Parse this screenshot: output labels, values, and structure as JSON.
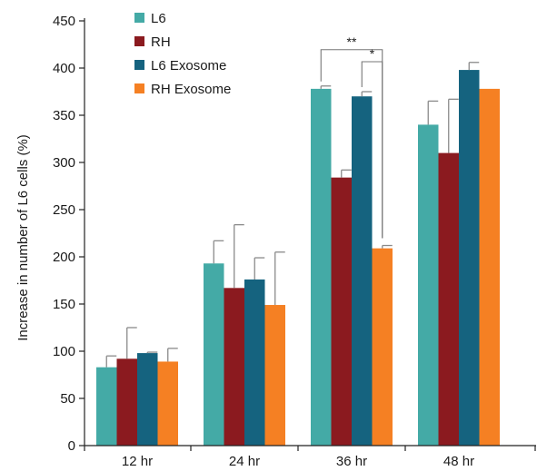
{
  "chart_data": {
    "type": "bar",
    "title": "",
    "xlabel": "",
    "ylabel": "Increase in number of L6 cells (%)",
    "ylim": [
      0,
      450
    ],
    "yticks": [
      0,
      50,
      100,
      150,
      200,
      250,
      300,
      350,
      400,
      450
    ],
    "categories": [
      "12 hr",
      "24 hr",
      "36 hr",
      "48 hr"
    ],
    "grid": false,
    "legend": "top-left",
    "series": [
      {
        "name": "L6",
        "color": "#44aaa6",
        "values": [
          83,
          193,
          378,
          340
        ],
        "errors": [
          12,
          24,
          3,
          25
        ]
      },
      {
        "name": "RH",
        "color": "#8b1a1f",
        "values": [
          92,
          167,
          284,
          310
        ],
        "errors": [
          33,
          67,
          8,
          57
        ]
      },
      {
        "name": "L6 Exosome",
        "color": "#15637f",
        "values": [
          98,
          176,
          370,
          398
        ],
        "errors": [
          1,
          23,
          5,
          8
        ]
      },
      {
        "name": "RH Exosome",
        "color": "#f58023",
        "values": [
          89,
          149,
          209,
          378
        ],
        "errors": [
          14,
          56,
          3,
          0
        ]
      }
    ],
    "annotations": [
      {
        "label": "**",
        "category": "36 hr",
        "from_series": "L6",
        "to_series": "RH Exosome"
      },
      {
        "label": "*",
        "category": "36 hr",
        "from_series": "L6 Exosome",
        "to_series": "RH Exosome"
      }
    ]
  }
}
